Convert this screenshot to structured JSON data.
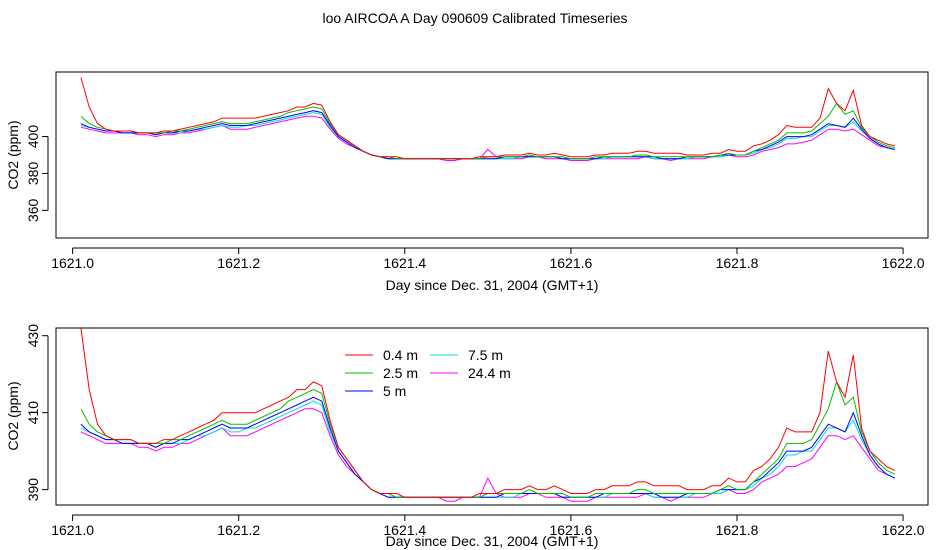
{
  "title": "loo AIRCOA A  Day 090609  Calibrated Timeseries",
  "colors": {
    "0.4 m": "#ff0000",
    "2.5 m": "#00c000",
    "5 m": "#0000ff",
    "7.5 m": "#00e0e0",
    "24.4 m": "#ff00ff"
  },
  "chart_data": [
    {
      "type": "line",
      "title": "",
      "xlabel": "Day since Dec. 31, 2004 (GMT+1)",
      "ylabel": "CO2 (ppm)",
      "xlim": [
        1620.98,
        1622.03
      ],
      "ylim": [
        345,
        435
      ],
      "x_ticks": [
        "1621.0",
        "1621.2",
        "1621.4",
        "1621.6",
        "1621.8",
        "1622.0"
      ],
      "y_ticks": [
        "360",
        "380",
        "400"
      ],
      "legend": "none",
      "grid": false,
      "x": [
        1621.01,
        1621.02,
        1621.03,
        1621.04,
        1621.05,
        1621.06,
        1621.07,
        1621.08,
        1621.09,
        1621.1,
        1621.11,
        1621.12,
        1621.13,
        1621.14,
        1621.15,
        1621.16,
        1621.17,
        1621.18,
        1621.19,
        1621.2,
        1621.21,
        1621.22,
        1621.23,
        1621.24,
        1621.25,
        1621.26,
        1621.27,
        1621.28,
        1621.29,
        1621.3,
        1621.31,
        1621.32,
        1621.33,
        1621.34,
        1621.35,
        1621.36,
        1621.37,
        1621.38,
        1621.39,
        1621.4,
        1621.41,
        1621.42,
        1621.43,
        1621.44,
        1621.45,
        1621.46,
        1621.47,
        1621.48,
        1621.49,
        1621.5,
        1621.51,
        1621.52,
        1621.53,
        1621.54,
        1621.55,
        1621.56,
        1621.57,
        1621.58,
        1621.59,
        1621.6,
        1621.61,
        1621.62,
        1621.63,
        1621.64,
        1621.65,
        1621.66,
        1621.67,
        1621.68,
        1621.69,
        1621.7,
        1621.71,
        1621.72,
        1621.73,
        1621.74,
        1621.75,
        1621.76,
        1621.77,
        1621.78,
        1621.79,
        1621.8,
        1621.81,
        1621.82,
        1621.83,
        1621.84,
        1621.85,
        1621.86,
        1621.87,
        1621.88,
        1621.89,
        1621.9,
        1621.91,
        1621.92,
        1621.93,
        1621.94,
        1621.95,
        1621.96,
        1621.97,
        1621.98,
        1621.99
      ],
      "series": [
        {
          "name": "0.4 m",
          "values": [
            432,
            416,
            407,
            404,
            403,
            403,
            403,
            402,
            402,
            402,
            403,
            403,
            404,
            405,
            406,
            407,
            408,
            410,
            410,
            410,
            410,
            410,
            411,
            412,
            413,
            414,
            416,
            416,
            418,
            417,
            408,
            401,
            398,
            395,
            392,
            390,
            389,
            389,
            389,
            388,
            388,
            388,
            388,
            388,
            388,
            388,
            388,
            388,
            389,
            389,
            389,
            390,
            390,
            390,
            391,
            390,
            390,
            391,
            390,
            389,
            389,
            389,
            390,
            390,
            391,
            391,
            391,
            392,
            392,
            391,
            391,
            391,
            391,
            390,
            390,
            390,
            391,
            391,
            393,
            392,
            392,
            395,
            396,
            398,
            401,
            406,
            405,
            405,
            405,
            410,
            426,
            418,
            414,
            425,
            406,
            400,
            398,
            396,
            395
          ]
        },
        {
          "name": "2.5 m",
          "values": [
            411,
            407,
            405,
            404,
            403,
            403,
            403,
            402,
            402,
            402,
            402,
            403,
            403,
            404,
            405,
            406,
            407,
            408,
            407,
            407,
            407,
            408,
            409,
            410,
            411,
            413,
            414,
            415,
            416,
            415,
            407,
            401,
            398,
            395,
            392,
            390,
            389,
            389,
            388,
            388,
            388,
            388,
            388,
            388,
            388,
            388,
            388,
            388,
            388,
            389,
            389,
            389,
            389,
            389,
            390,
            389,
            389,
            389,
            389,
            388,
            388,
            388,
            389,
            389,
            389,
            389,
            389,
            390,
            390,
            389,
            389,
            389,
            389,
            389,
            389,
            389,
            389,
            390,
            391,
            390,
            390,
            392,
            394,
            396,
            398,
            402,
            402,
            402,
            403,
            407,
            411,
            418,
            412,
            414,
            405,
            400,
            397,
            395,
            394
          ]
        },
        {
          "name": "5 m",
          "values": [
            407,
            405,
            404,
            403,
            403,
            402,
            402,
            402,
            402,
            401,
            402,
            402,
            403,
            403,
            404,
            405,
            406,
            407,
            406,
            406,
            406,
            407,
            408,
            409,
            410,
            411,
            412,
            413,
            414,
            413,
            406,
            400,
            397,
            394,
            392,
            390,
            389,
            388,
            388,
            388,
            388,
            388,
            388,
            388,
            388,
            388,
            388,
            388,
            388,
            388,
            388,
            389,
            389,
            389,
            389,
            389,
            389,
            389,
            388,
            388,
            388,
            388,
            388,
            389,
            389,
            389,
            389,
            389,
            389,
            389,
            388,
            388,
            388,
            389,
            389,
            389,
            389,
            390,
            390,
            390,
            390,
            392,
            393,
            395,
            397,
            400,
            400,
            400,
            401,
            404,
            407,
            406,
            405,
            410,
            404,
            399,
            396,
            394,
            393
          ]
        },
        {
          "name": "7.5 m",
          "values": [
            406,
            405,
            404,
            403,
            403,
            402,
            402,
            402,
            402,
            401,
            402,
            402,
            402,
            403,
            404,
            404,
            405,
            406,
            405,
            405,
            406,
            406,
            407,
            408,
            409,
            410,
            411,
            412,
            413,
            412,
            405,
            400,
            397,
            394,
            392,
            390,
            389,
            388,
            388,
            388,
            388,
            388,
            388,
            388,
            388,
            388,
            388,
            388,
            388,
            388,
            388,
            388,
            388,
            389,
            389,
            389,
            389,
            389,
            388,
            388,
            388,
            388,
            388,
            388,
            389,
            389,
            389,
            389,
            389,
            388,
            388,
            388,
            388,
            388,
            389,
            389,
            389,
            389,
            390,
            390,
            390,
            391,
            393,
            394,
            396,
            399,
            399,
            400,
            400,
            403,
            406,
            406,
            405,
            408,
            403,
            399,
            396,
            394,
            393
          ]
        },
        {
          "name": "24.4 m",
          "values": [
            405,
            404,
            403,
            402,
            402,
            402,
            402,
            401,
            401,
            400,
            401,
            401,
            402,
            402,
            403,
            404,
            405,
            406,
            404,
            404,
            404,
            405,
            406,
            407,
            408,
            409,
            410,
            411,
            411,
            410,
            404,
            399,
            396,
            394,
            392,
            390,
            389,
            388,
            388,
            388,
            388,
            388,
            388,
            388,
            387,
            387,
            388,
            388,
            388,
            393,
            389,
            388,
            388,
            388,
            389,
            389,
            388,
            388,
            388,
            387,
            387,
            387,
            388,
            388,
            388,
            388,
            388,
            388,
            389,
            388,
            388,
            387,
            388,
            388,
            388,
            388,
            389,
            389,
            390,
            389,
            389,
            390,
            392,
            393,
            394,
            396,
            396,
            397,
            398,
            401,
            404,
            404,
            403,
            404,
            401,
            398,
            395,
            394,
            393
          ]
        }
      ]
    },
    {
      "type": "line",
      "title": "",
      "xlabel": "Day since Dec. 31, 2004 (GMT+1)",
      "ylabel": "CO2 (ppm)",
      "xlim": [
        1620.98,
        1622.03
      ],
      "ylim": [
        386,
        432
      ],
      "x_ticks": [
        "1621.0",
        "1621.2",
        "1621.4",
        "1621.6",
        "1621.8",
        "1622.0"
      ],
      "y_ticks": [
        "390",
        "410",
        "430"
      ],
      "legend": "top-left",
      "grid": false,
      "legend_entries": [
        "0.4 m",
        "2.5 m",
        "5 m",
        "7.5 m",
        "24.4 m"
      ],
      "uses_series_from_first_panel": true
    }
  ]
}
